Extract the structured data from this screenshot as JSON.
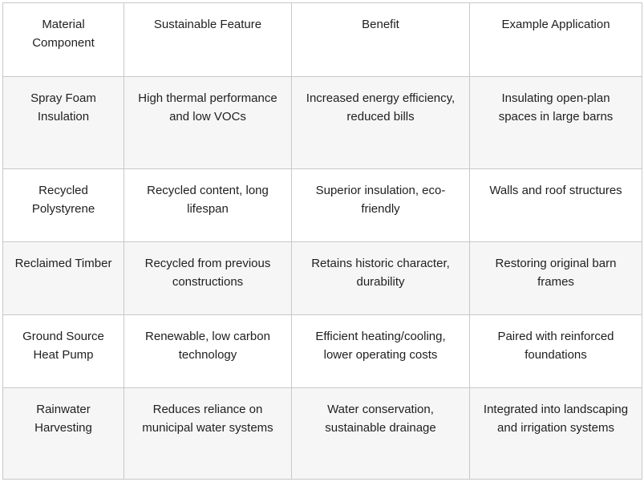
{
  "table": {
    "headers": [
      "Material Component",
      "Sustainable Feature",
      "Benefit",
      "Example Application"
    ],
    "rows": [
      [
        "Spray Foam Insulation",
        "High thermal performance and low VOCs",
        "Increased energy efficiency, reduced bills",
        "Insulating open-plan spaces in large barns"
      ],
      [
        "Recycled Polystyrene",
        "Recycled content, long lifespan",
        "Superior insulation, eco-friendly",
        "Walls and roof structures"
      ],
      [
        "Reclaimed Timber",
        "Recycled from previous constructions",
        "Retains historic character, durability",
        "Restoring original barn frames"
      ],
      [
        "Ground Source Heat Pump",
        "Renewable, low carbon technology",
        "Efficient heating/cooling, lower operating costs",
        "Paired with reinforced foundations"
      ],
      [
        "Rainwater Harvesting",
        "Reduces reliance on municipal water systems",
        "Water conservation, sustainable drainage",
        "Integrated into landscaping and irrigation systems"
      ]
    ]
  }
}
